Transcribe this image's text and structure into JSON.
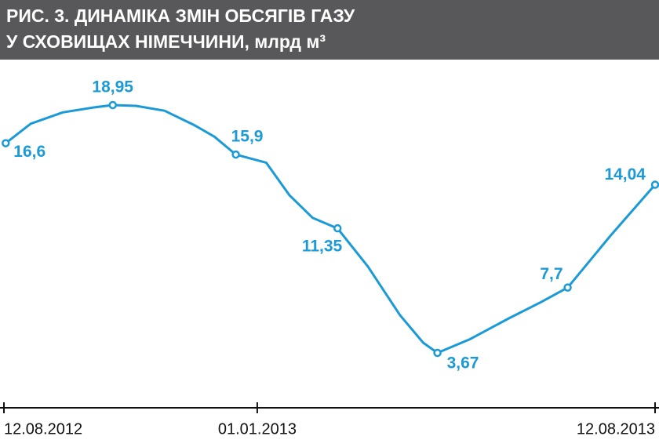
{
  "chart_data": {
    "type": "line",
    "title_lines": [
      "РИС. 3. ДИНАМІКА ЗМІН ОБСЯГІВ ГАЗУ",
      "У СХОВИЩАХ НІМЕЧЧИНИ, млрд м³"
    ],
    "x": [
      "2012-08-13",
      "2012-08-27",
      "2012-09-14",
      "2012-10-01",
      "2012-10-12",
      "2012-10-25",
      "2012-11-10",
      "2012-11-27",
      "2012-12-08",
      "2012-12-20",
      "2013-01-06",
      "2013-01-19",
      "2013-02-01",
      "2013-02-15",
      "2013-03-04",
      "2013-03-22",
      "2013-04-04",
      "2013-04-12",
      "2013-04-30",
      "2013-05-22",
      "2013-06-09",
      "2013-06-24",
      "2013-07-18",
      "2013-08-12"
    ],
    "values": [
      16.6,
      17.8,
      18.5,
      18.8,
      18.95,
      18.9,
      18.6,
      17.7,
      17.0,
      15.9,
      15.4,
      13.4,
      12.0,
      11.35,
      9.0,
      6.0,
      4.3,
      3.67,
      4.5,
      5.8,
      6.8,
      7.7,
      10.9,
      14.04
    ],
    "value_labels": [
      "16,6",
      null,
      null,
      null,
      "18,95",
      null,
      null,
      null,
      null,
      "15,9",
      null,
      null,
      null,
      "11,35",
      null,
      null,
      null,
      "3,67",
      null,
      null,
      null,
      "7,7",
      null,
      "14,04"
    ],
    "color": "#1a9ad6",
    "xlim": [
      "2012-08-12",
      "2013-08-12"
    ],
    "xticks": [
      {
        "value": "2012-08-12",
        "label": "12.08.2012"
      },
      {
        "value": "2013-01-01",
        "label": "01.01.2013"
      },
      {
        "value": "2013-08-12",
        "label": "12.08.2013"
      }
    ]
  }
}
